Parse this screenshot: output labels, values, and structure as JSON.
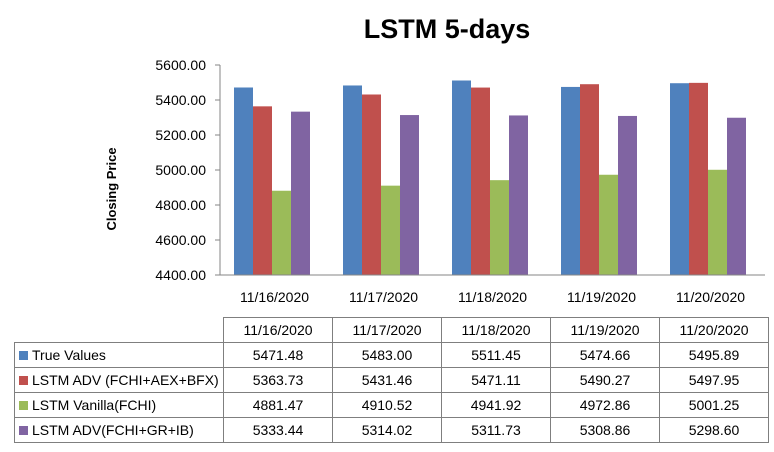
{
  "chart_data": {
    "type": "bar",
    "title": "LSTM 5-days",
    "xlabel": "",
    "ylabel": "Closing Price",
    "ylim": [
      4400,
      5600
    ],
    "yticks": [
      "4400.00",
      "4600.00",
      "4800.00",
      "5000.00",
      "5200.00",
      "5400.00",
      "5600.00"
    ],
    "categories": [
      "11/16/2020",
      "11/17/2020",
      "11/18/2020",
      "11/19/2020",
      "11/20/2020"
    ],
    "series": [
      {
        "name": "True Values",
        "color": "#4f81bd",
        "values": [
          5471.48,
          5483.0,
          5511.45,
          5474.66,
          5495.89
        ],
        "labels": [
          "5471.48",
          "5483.00",
          "5511.45",
          "5474.66",
          "5495.89"
        ]
      },
      {
        "name": "LSTM ADV (FCHI+AEX+BFX)",
        "color": "#c0504d",
        "values": [
          5363.73,
          5431.46,
          5471.11,
          5490.27,
          5497.95
        ],
        "labels": [
          "5363.73",
          "5431.46",
          "5471.11",
          "5490.27",
          "5497.95"
        ]
      },
      {
        "name": "LSTM Vanilla(FCHI)",
        "color": "#9bbb59",
        "values": [
          4881.47,
          4910.52,
          4941.92,
          4972.86,
          5001.25
        ],
        "labels": [
          "4881.47",
          "4910.52",
          "4941.92",
          "4972.86",
          "5001.25"
        ]
      },
      {
        "name": "LSTM ADV(FCHI+GR+IB)",
        "color": "#8064a2",
        "values": [
          5333.44,
          5314.02,
          5311.73,
          5308.86,
          5298.6
        ],
        "labels": [
          "5333.44",
          "5314.02",
          "5311.73",
          "5308.86",
          "5298.60"
        ]
      }
    ],
    "grid": false,
    "legend": "data table below chart"
  }
}
